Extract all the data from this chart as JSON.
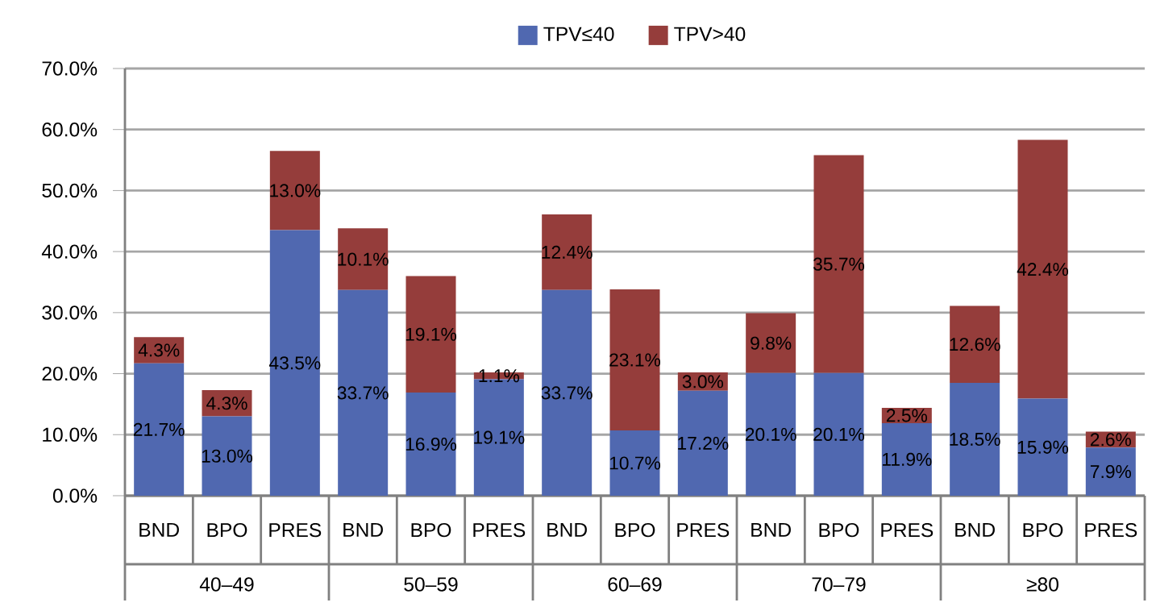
{
  "chart_data": {
    "type": "bar",
    "stacked": true,
    "legend": "top",
    "grid": "y",
    "categories": [
      "BND",
      "BPO",
      "PRES",
      "BND",
      "BPO",
      "PRES",
      "BND",
      "BPO",
      "PRES",
      "BND",
      "BPO",
      "PRES",
      "BND",
      "BPO",
      "PRES"
    ],
    "annotations": [
      "40–49",
      "50–59",
      "60–69",
      "70–79",
      "≥80"
    ],
    "ylim": [
      0,
      70
    ],
    "yticks": [
      {
        "value": 0,
        "label": "0.0%"
      },
      {
        "value": 10,
        "label": "10.0%"
      },
      {
        "value": 20,
        "label": "20.0%"
      },
      {
        "value": 30,
        "label": "30.0%"
      },
      {
        "value": 40,
        "label": "40.0%"
      },
      {
        "value": 50,
        "label": "50.0%"
      },
      {
        "value": 60,
        "label": "60.0%"
      },
      {
        "value": 70,
        "label": "70.0%"
      }
    ],
    "series": [
      {
        "name": "TPV≤40",
        "color": "#5068b0",
        "values": [
          21.7,
          13.0,
          43.5,
          33.7,
          16.9,
          19.1,
          33.7,
          10.7,
          17.2,
          20.1,
          20.1,
          11.9,
          18.5,
          15.9,
          7.9
        ],
        "value_labels": [
          "21.7%",
          "13.0%",
          "43.5%",
          "33.7%",
          "16.9%",
          "19.1%",
          "33.7%",
          "10.7%",
          "17.2%",
          "20.1%",
          "20.1%",
          "11.9%",
          "18.5%",
          "15.9%",
          "7.9%"
        ]
      },
      {
        "name": "TPV>40",
        "color": "#953d3b",
        "values": [
          4.3,
          4.3,
          13.0,
          10.1,
          19.1,
          1.1,
          12.4,
          23.1,
          3.0,
          9.8,
          35.7,
          2.5,
          12.6,
          42.4,
          2.6
        ],
        "value_labels": [
          "4.3%",
          "4.3%",
          "13.0%",
          "10.1%",
          "19.1%",
          "1.1%",
          "12.4%",
          "23.1%",
          "3.0%",
          "9.8%",
          "35.7%",
          "2.5%",
          "12.6%",
          "42.4%",
          "2.6%"
        ]
      }
    ]
  }
}
